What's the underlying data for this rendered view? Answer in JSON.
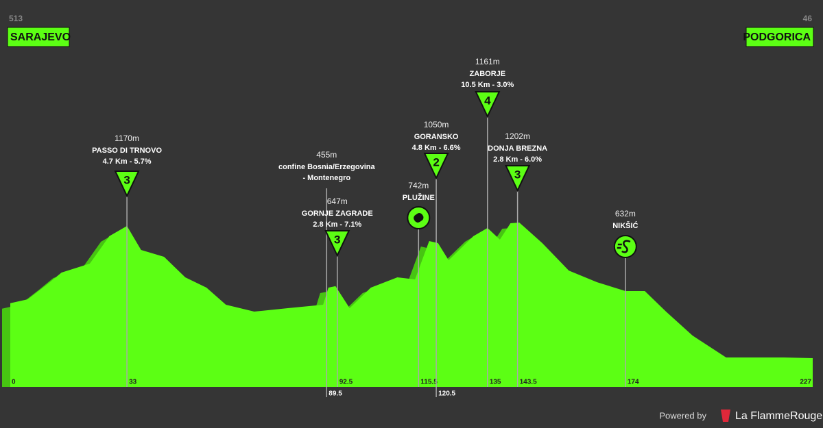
{
  "start": {
    "elevation": "513",
    "name": "SARAJEVO"
  },
  "finish": {
    "elevation": "46",
    "name": "PODGORICA"
  },
  "profile": {
    "km": [
      0,
      5,
      10.5,
      14.5,
      22.5,
      28,
      33,
      37,
      43.5,
      49.5,
      55.5,
      61,
      69,
      78.5,
      88.5,
      90,
      92,
      96,
      102,
      109.5,
      114.5,
      116.5,
      118.5,
      121,
      124,
      131,
      135,
      138.5,
      141.5,
      144,
      150.5,
      158,
      166,
      174,
      179.5,
      185.5,
      193,
      202.5,
      218.5,
      227
    ],
    "elevation": [
      513,
      547,
      675,
      774,
      850,
      1083,
      1170,
      966,
      908,
      733,
      646,
      500,
      442,
      471,
      500,
      646,
      658,
      471,
      646,
      733,
      716,
      879,
      1042,
      1024,
      879,
      1083,
      1153,
      1054,
      1193,
      1199,
      1024,
      791,
      692,
      617,
      617,
      442,
      238,
      52,
      52,
      46
    ]
  },
  "km_start": 0,
  "km_end": 227,
  "markers": [
    {
      "km": 33,
      "elevation": "1170m",
      "name": "PASSO DI TRNOVO",
      "detail": "4.7 Km - 5.7%",
      "climb": "3"
    },
    {
      "km": 89.5,
      "elevation": "455m",
      "name": "confine Bosnia/Erzegovina",
      "detail": "- Montenegro"
    },
    {
      "km": 92.5,
      "elevation": "647m",
      "name": "GORNJE ZAGRADE",
      "detail": "2.8 Km - 7.1%",
      "climb": "3"
    },
    {
      "km": 115.5,
      "elevation": "742m",
      "name": "PLUŽINE"
    },
    {
      "km": 120.5,
      "elevation": "1050m",
      "name": "GORANSKO",
      "detail": "4.8 Km - 6.6%",
      "climb": "2"
    },
    {
      "km": 135,
      "elevation": "1161m",
      "name": "ZABORJE",
      "detail": "10.5 Km - 3.0%",
      "climb": "4"
    },
    {
      "km": 143.5,
      "elevation": "1202m",
      "name": "DONJA BREZNA",
      "detail": "2.8 Km - 6.0%",
      "climb": "3"
    },
    {
      "km": 174,
      "elevation": "632m",
      "name": "NIKŠIĆ"
    }
  ],
  "footer": {
    "powered": "Powered by",
    "brand": "La FlammeRouge"
  }
}
